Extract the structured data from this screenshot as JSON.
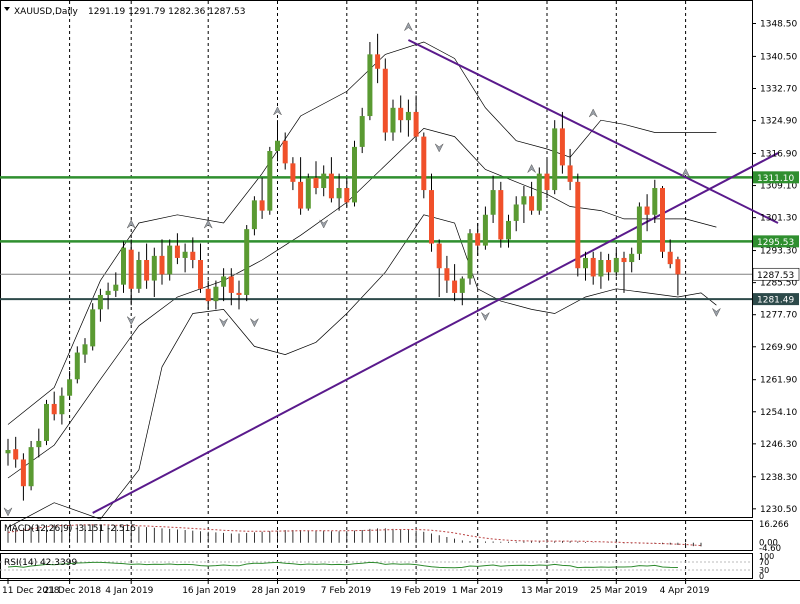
{
  "header": {
    "symbol": "XAUUSD,Daily",
    "ohlc": "1291.19 1291.79 1282.36 1287.53"
  },
  "chart_data": {
    "type": "candlestick",
    "ylim": [
      1229,
      1353
    ],
    "y_ticks": [
      "1348.50",
      "1340.50",
      "1332.70",
      "1324.90",
      "1316.90",
      "1309.10",
      "1301.30",
      "1293.30",
      "1285.50",
      "1277.70",
      "1269.90",
      "1261.90",
      "1254.10",
      "1246.30",
      "1238.30",
      "1230.50"
    ],
    "x_labels": [
      {
        "label": "11 Dec 2018",
        "i": 0
      },
      {
        "label": "21 Dec 2018",
        "i": 8
      },
      {
        "label": "4 Jan 2019",
        "i": 16
      },
      {
        "label": "16 Jan 2019",
        "i": 26
      },
      {
        "label": "28 Jan 2019",
        "i": 35
      },
      {
        "label": "7 Feb 2019",
        "i": 44
      },
      {
        "label": "19 Feb 2019",
        "i": 53
      },
      {
        "label": "1 Mar 2019",
        "i": 61
      },
      {
        "label": "13 Mar 2019",
        "i": 70
      },
      {
        "label": "25 Mar 2019",
        "i": 79
      },
      {
        "label": "4 Apr 2019",
        "i": 88
      }
    ],
    "candles": [
      [
        1244.0,
        1247.5,
        1241.0,
        1244.8
      ],
      [
        1245.0,
        1248.0,
        1240.5,
        1242.5
      ],
      [
        1242.5,
        1244.0,
        1232.5,
        1236.0
      ],
      [
        1236.0,
        1247.0,
        1235.0,
        1245.5
      ],
      [
        1245.5,
        1250.0,
        1243.0,
        1247.0
      ],
      [
        1247.0,
        1257.0,
        1246.0,
        1256.0
      ],
      [
        1256.0,
        1259.0,
        1252.0,
        1253.5
      ],
      [
        1253.5,
        1260.0,
        1251.0,
        1258.0
      ],
      [
        1258.0,
        1264.0,
        1257.0,
        1262.0
      ],
      [
        1262.0,
        1270.0,
        1261.0,
        1268.5
      ],
      [
        1268.0,
        1272.0,
        1266.0,
        1270.5
      ],
      [
        1270.0,
        1280.5,
        1269.0,
        1279.0
      ],
      [
        1279.0,
        1284.0,
        1276.0,
        1282.5
      ],
      [
        1282.5,
        1285.5,
        1279.0,
        1283.5
      ],
      [
        1283.5,
        1288.0,
        1282.0,
        1285.0
      ],
      [
        1285.0,
        1295.5,
        1283.0,
        1294.0
      ],
      [
        1293.5,
        1296.0,
        1280.0,
        1284.0
      ],
      [
        1284.0,
        1293.0,
        1283.0,
        1291.0
      ],
      [
        1291.0,
        1295.0,
        1284.0,
        1286.0
      ],
      [
        1286.0,
        1294.0,
        1282.0,
        1292.0
      ],
      [
        1292.0,
        1296.0,
        1285.0,
        1287.5
      ],
      [
        1287.5,
        1296.0,
        1286.0,
        1294.5
      ],
      [
        1294.5,
        1297.5,
        1290.0,
        1291.5
      ],
      [
        1291.5,
        1295.0,
        1288.0,
        1293.0
      ],
      [
        1293.0,
        1296.5,
        1289.0,
        1291.0
      ],
      [
        1291.0,
        1295.0,
        1283.0,
        1284.0
      ],
      [
        1284.0,
        1286.0,
        1279.0,
        1281.0
      ],
      [
        1281.0,
        1286.0,
        1279.0,
        1284.5
      ],
      [
        1284.5,
        1289.0,
        1281.0,
        1287.0
      ],
      [
        1287.0,
        1289.0,
        1280.0,
        1283.0
      ],
      [
        1283.0,
        1286.0,
        1279.0,
        1282.5
      ],
      [
        1282.5,
        1299.5,
        1281.0,
        1298.5
      ],
      [
        1298.5,
        1306.5,
        1297.0,
        1305.5
      ],
      [
        1305.5,
        1311.0,
        1301.0,
        1303.0
      ],
      [
        1303.0,
        1318.5,
        1302.0,
        1317.5
      ],
      [
        1317.5,
        1325.0,
        1315.0,
        1320.0
      ],
      [
        1320.0,
        1322.0,
        1313.0,
        1314.5
      ],
      [
        1314.5,
        1316.0,
        1308.0,
        1310.0
      ],
      [
        1310.0,
        1316.0,
        1302.0,
        1303.5
      ],
      [
        1303.5,
        1312.0,
        1303.0,
        1311.0
      ],
      [
        1311.0,
        1315.0,
        1307.0,
        1308.5
      ],
      [
        1308.5,
        1314.0,
        1306.5,
        1312.0
      ],
      [
        1312.0,
        1316.0,
        1305.0,
        1306.0
      ],
      [
        1306.0,
        1312.0,
        1303.0,
        1308.5
      ],
      [
        1308.5,
        1311.0,
        1304.0,
        1305.0
      ],
      [
        1305.0,
        1320.0,
        1304.0,
        1318.5
      ],
      [
        1318.5,
        1328.0,
        1317.0,
        1326.0
      ],
      [
        1326.0,
        1344.0,
        1325.0,
        1341.0
      ],
      [
        1341.0,
        1346.0,
        1334.0,
        1337.5
      ],
      [
        1337.5,
        1340.0,
        1320.0,
        1322.0
      ],
      [
        1322.0,
        1330.0,
        1320.0,
        1328.0
      ],
      [
        1328.0,
        1331.0,
        1322.0,
        1325.0
      ],
      [
        1325.0,
        1330.0,
        1321.0,
        1327.0
      ],
      [
        1327.0,
        1331.0,
        1320.0,
        1321.0
      ],
      [
        1321.0,
        1322.0,
        1306.0,
        1308.0
      ],
      [
        1308.0,
        1312.0,
        1293.0,
        1295.0
      ],
      [
        1295.0,
        1296.0,
        1282.0,
        1289.0
      ],
      [
        1289.0,
        1292.0,
        1283.0,
        1286.0
      ],
      [
        1286.0,
        1290.0,
        1281.0,
        1283.0
      ],
      [
        1283.0,
        1287.0,
        1280.0,
        1286.5
      ],
      [
        1286.5,
        1298.5,
        1285.0,
        1297.5
      ],
      [
        1297.5,
        1300.0,
        1292.0,
        1294.5
      ],
      [
        1294.5,
        1304.0,
        1293.5,
        1302.0
      ],
      [
        1302.0,
        1311.5,
        1300.0,
        1308.0
      ],
      [
        1308.0,
        1310.0,
        1294.0,
        1296.0
      ],
      [
        1296.0,
        1302.0,
        1294.0,
        1300.5
      ],
      [
        1300.5,
        1306.5,
        1298.0,
        1304.5
      ],
      [
        1304.5,
        1309.0,
        1300.0,
        1306.5
      ],
      [
        1306.5,
        1310.0,
        1302.0,
        1303.0
      ],
      [
        1303.0,
        1313.5,
        1302.0,
        1312.0
      ],
      [
        1312.0,
        1316.0,
        1306.0,
        1308.0
      ],
      [
        1308.0,
        1325.0,
        1307.0,
        1323.0
      ],
      [
        1323.0,
        1327.0,
        1312.0,
        1314.0
      ],
      [
        1314.0,
        1318.0,
        1308.0,
        1310.0
      ],
      [
        1310.0,
        1312.0,
        1287.0,
        1289.0
      ],
      [
        1289.0,
        1293.0,
        1286.0,
        1291.5
      ],
      [
        1291.5,
        1293.0,
        1285.0,
        1287.0
      ],
      [
        1287.0,
        1293.0,
        1284.0,
        1291.0
      ],
      [
        1291.0,
        1292.5,
        1286.0,
        1288.0
      ],
      [
        1288.0,
        1293.5,
        1287.0,
        1291.5
      ],
      [
        1291.5,
        1293.0,
        1283.0,
        1290.5
      ],
      [
        1290.5,
        1294.0,
        1288.0,
        1292.5
      ],
      [
        1292.5,
        1305.0,
        1291.0,
        1304.0
      ],
      [
        1304.0,
        1307.0,
        1298.0,
        1302.0
      ],
      [
        1302.0,
        1310.5,
        1300.0,
        1308.5
      ],
      [
        1308.5,
        1309.0,
        1291.5,
        1293.0
      ],
      [
        1293.0,
        1296.0,
        1289.0,
        1290.0
      ],
      [
        1291.2,
        1291.8,
        1282.4,
        1287.5
      ]
    ],
    "bollinger": {
      "upper": [
        [
          0,
          1251
        ],
        [
          6,
          1260
        ],
        [
          12,
          1286
        ],
        [
          17,
          1300
        ],
        [
          22,
          1302
        ],
        [
          28,
          1300
        ],
        [
          33,
          1312
        ],
        [
          38,
          1326
        ],
        [
          44,
          1332
        ],
        [
          49,
          1341
        ],
        [
          54,
          1344
        ],
        [
          58,
          1340
        ],
        [
          62,
          1328
        ],
        [
          66,
          1320
        ],
        [
          70,
          1318
        ],
        [
          73,
          1316
        ],
        [
          77,
          1325
        ],
        [
          80,
          1324
        ],
        [
          84,
          1322
        ],
        [
          88,
          1322
        ],
        [
          92,
          1322
        ]
      ],
      "middle": [
        [
          0,
          1238
        ],
        [
          6,
          1246
        ],
        [
          12,
          1262
        ],
        [
          17,
          1275
        ],
        [
          22,
          1282
        ],
        [
          28,
          1286
        ],
        [
          33,
          1291
        ],
        [
          38,
          1297
        ],
        [
          44,
          1305
        ],
        [
          49,
          1314
        ],
        [
          54,
          1323
        ],
        [
          58,
          1321
        ],
        [
          62,
          1313
        ],
        [
          66,
          1310
        ],
        [
          70,
          1307
        ],
        [
          73,
          1304
        ],
        [
          77,
          1303
        ],
        [
          80,
          1301
        ],
        [
          84,
          1301
        ],
        [
          88,
          1301
        ],
        [
          92,
          1299
        ]
      ],
      "lower": [
        [
          0,
          1226
        ],
        [
          6,
          1232
        ],
        [
          12,
          1228
        ],
        [
          17,
          1240
        ],
        [
          20,
          1265
        ],
        [
          24,
          1278
        ],
        [
          28,
          1279
        ],
        [
          32,
          1270
        ],
        [
          36,
          1268
        ],
        [
          40,
          1271
        ],
        [
          44,
          1278
        ],
        [
          49,
          1288
        ],
        [
          54,
          1302
        ],
        [
          58,
          1300
        ],
        [
          61,
          1284
        ],
        [
          64,
          1281
        ],
        [
          68,
          1279
        ],
        [
          71,
          1278
        ],
        [
          75,
          1282
        ],
        [
          79,
          1284
        ],
        [
          83,
          1283
        ],
        [
          87,
          1282
        ],
        [
          90,
          1283
        ],
        [
          92,
          1280
        ]
      ]
    },
    "hlines": [
      {
        "price": 1311.1,
        "label": "1311.10",
        "color": "#2f8f2f",
        "width": 2.5
      },
      {
        "price": 1295.53,
        "label": "1295.53",
        "color": "#2f8f2f",
        "width": 2.5
      },
      {
        "price": 1287.53,
        "label": "1287.53",
        "color": "#808080",
        "width": 1
      },
      {
        "price": 1281.49,
        "label": "1281.49",
        "color": "#2d4a4a",
        "width": 2
      }
    ],
    "trendlines": [
      {
        "from": [
          11.0,
          1229.5
        ],
        "to": [
          100.0,
          1317.0
        ],
        "color": "#5a1a8c"
      },
      {
        "from": [
          52.0,
          1344.5
        ],
        "to": [
          100.0,
          1300.0
        ],
        "color": "#5a1a8c"
      }
    ],
    "fractals_up": [
      [
        16,
        1299.5
      ],
      [
        26,
        1299.5
      ],
      [
        35,
        1327.0
      ],
      [
        52,
        1347.5
      ],
      [
        68,
        1313.0
      ],
      [
        76,
        1326.5
      ],
      [
        88,
        1312.0
      ]
    ],
    "fractals_down": [
      [
        0,
        1230.0
      ],
      [
        16,
        1276.5
      ],
      [
        28,
        1276.0
      ],
      [
        32,
        1276.0
      ],
      [
        41,
        1300.0
      ],
      [
        56,
        1318.5
      ],
      [
        62,
        1277.5
      ],
      [
        92,
        1278.5
      ]
    ]
  },
  "macd": {
    "label": "MACD(12,26,9) -3.151 -2.515",
    "ticks": [
      "16.266",
      "0.00",
      "-4.60"
    ],
    "values": [
      11,
      12,
      13,
      14,
      15,
      15.5,
      16,
      16,
      16,
      16,
      16,
      16,
      15.5,
      15,
      15,
      15,
      14.5,
      14,
      13.5,
      13,
      12.5,
      12,
      11.5,
      11,
      10.5,
      10,
      9.5,
      9,
      8.5,
      8,
      8,
      8.5,
      9,
      9.5,
      10,
      10.5,
      11,
      11,
      11,
      10.5,
      10.5,
      10.5,
      10,
      10,
      10,
      10.5,
      11,
      12,
      12.5,
      12.5,
      12,
      11.5,
      11,
      10.5,
      9.5,
      8,
      6.5,
      5,
      3.5,
      2,
      1.5,
      1.2,
      1.0,
      1.0,
      0.8,
      0.8,
      0.9,
      1.0,
      1.0,
      1.0,
      1.1,
      1.2,
      1.4,
      1.3,
      1.0,
      0.6,
      0.3,
      0.1,
      -0.2,
      -0.4,
      -0.6,
      -0.7,
      -0.8,
      -0.9,
      -1.0,
      -1.2,
      -1.6,
      -2.0,
      -2.5,
      -3.0,
      -3.151
    ],
    "signal": [
      9,
      10,
      11,
      12,
      13,
      14,
      14.5,
      15,
      15,
      15.5,
      15.5,
      15.5,
      15.5,
      15.5,
      15.2,
      15,
      15,
      14.7,
      14.5,
      14.2,
      13.9,
      13.5,
      13.2,
      12.8,
      12.4,
      12,
      11.6,
      11.2,
      10.8,
      10.5,
      10.2,
      10,
      10,
      10,
      10,
      10.1,
      10.2,
      10.3,
      10.4,
      10.4,
      10.4,
      10.4,
      10.4,
      10.4,
      10.4,
      10.5,
      10.6,
      10.8,
      11,
      11.2,
      11.4,
      11.5,
      11.5,
      11.4,
      11.2,
      10.8,
      10.2,
      9.4,
      8.4,
      7.2,
      6,
      5,
      4,
      3.2,
      2.6,
      2.1,
      1.8,
      1.6,
      1.5,
      1.4,
      1.4,
      1.4,
      1.4,
      1.4,
      1.3,
      1.2,
      1.0,
      0.8,
      0.6,
      0.4,
      0.2,
      0.0,
      -0.2,
      -0.4,
      -0.6,
      -0.8,
      -1.0,
      -1.3,
      -1.6,
      -2.0,
      -2.515
    ]
  },
  "rsi": {
    "label": "RSI(14) 42.3399",
    "ticks": [
      "100",
      "70",
      "30",
      "0"
    ],
    "values": [
      45,
      48,
      44,
      50,
      54,
      58,
      56,
      60,
      62,
      65,
      66,
      68,
      68,
      66,
      64,
      62,
      58,
      60,
      57,
      59,
      58,
      60,
      57,
      58,
      57,
      52,
      50,
      52,
      55,
      52,
      51,
      60,
      64,
      63,
      66,
      68,
      64,
      61,
      57,
      60,
      58,
      60,
      57,
      58,
      56,
      61,
      64,
      68,
      66,
      58,
      61,
      59,
      60,
      57,
      51,
      46,
      43,
      42,
      41,
      43,
      50,
      48,
      52,
      55,
      49,
      52,
      53,
      54,
      52,
      55,
      53,
      58,
      53,
      51,
      42,
      44,
      43,
      45,
      44,
      45,
      45,
      46,
      52,
      50,
      53,
      45,
      43,
      42.3399
    ]
  }
}
